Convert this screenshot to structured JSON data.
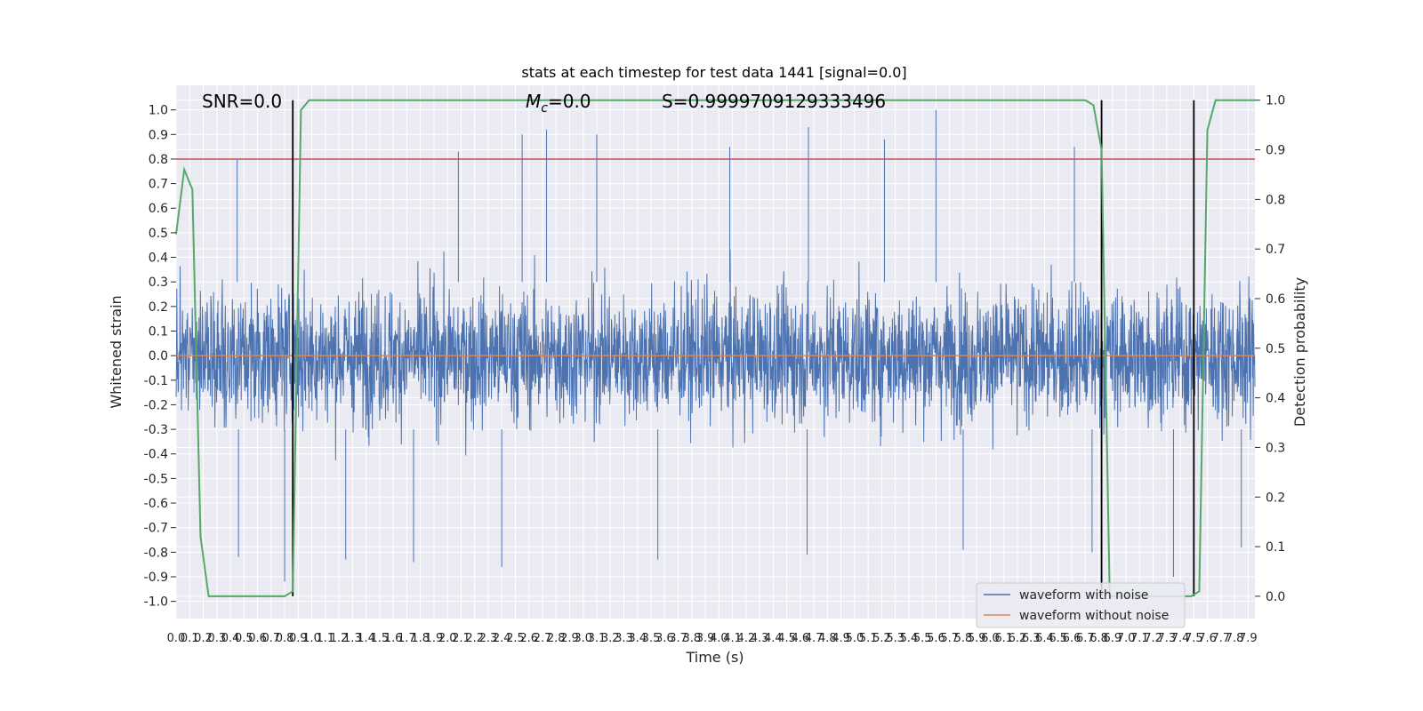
{
  "chart_data": {
    "type": "line",
    "title": "stats at each timestep for test data 1441 [signal=0.0]",
    "xlabel": "Time (s)",
    "ylabel": "Whitened strain",
    "y2label": "Detection probability",
    "xlim": [
      0.0,
      7.95
    ],
    "ylim": [
      -1.07,
      1.1
    ],
    "y2lim": [
      -0.045,
      1.03
    ],
    "x_ticks": [
      "0.0",
      "0.1",
      "0.2",
      "0.3",
      "0.4",
      "0.5",
      "0.6",
      "0.7",
      "0.8",
      "0.9",
      "1.0",
      "1.1",
      "1.2",
      "1.3",
      "1.4",
      "1.5",
      "1.6",
      "1.7",
      "1.8",
      "1.9",
      "2.0",
      "2.1",
      "2.2",
      "2.3",
      "2.4",
      "2.5",
      "2.6",
      "2.7",
      "2.8",
      "2.9",
      "3.0",
      "3.1",
      "3.2",
      "3.3",
      "3.4",
      "3.5",
      "3.6",
      "3.7",
      "3.8",
      "3.9",
      "4.0",
      "4.1",
      "4.2",
      "4.3",
      "4.4",
      "4.5",
      "4.6",
      "4.7",
      "4.8",
      "4.9",
      "5.0",
      "5.1",
      "5.2",
      "5.3",
      "5.4",
      "5.5",
      "5.6",
      "5.7",
      "5.8",
      "5.9",
      "6.0",
      "6.1",
      "6.2",
      "6.3",
      "6.4",
      "6.5",
      "6.6",
      "6.7",
      "6.8",
      "6.9",
      "7.0",
      "7.1",
      "7.2",
      "7.3",
      "7.4",
      "7.5",
      "7.6",
      "7.7",
      "7.8",
      "7.9"
    ],
    "y_ticks": [
      "1.0",
      "0.9",
      "0.8",
      "0.7",
      "0.6",
      "0.5",
      "0.4",
      "0.3",
      "0.2",
      "0.1",
      "0.0",
      "-0.1",
      "-0.2",
      "-0.3",
      "-0.4",
      "-0.5",
      "-0.6",
      "-0.7",
      "-0.8",
      "-0.9",
      "-1.0"
    ],
    "y2_ticks": [
      "1.0",
      "0.9",
      "0.8",
      "0.7",
      "0.6",
      "0.5",
      "0.4",
      "0.3",
      "0.2",
      "0.1",
      "0.0"
    ],
    "annotations": {
      "snr": "SNR=0.0",
      "mc_symbol": "M",
      "mc_sub": "c",
      "mc_value": "=0.0",
      "s": "S=0.9999709129333496"
    },
    "threshold_line": {
      "y": 0.8,
      "color": "#c44e52"
    },
    "vertical_lines_x": [
      0.86,
      6.82,
      7.5
    ],
    "series": [
      {
        "name": "waveform with noise",
        "color": "#4c72b0",
        "note_style": "noise",
        "amplitude_envelope": 0.6,
        "peaks_x": [
          0.45,
          2.08,
          2.55,
          2.73,
          3.1,
          4.08,
          4.66,
          5.22,
          5.6,
          6.62
        ],
        "peaks_y": [
          0.8,
          0.83,
          0.9,
          0.92,
          0.9,
          0.85,
          0.93,
          0.88,
          1.0,
          0.85
        ],
        "troughs_x": [
          0.46,
          0.8,
          1.25,
          1.75,
          2.4,
          3.55,
          4.65,
          5.8,
          6.75,
          7.35,
          7.85
        ],
        "troughs_y": [
          -0.82,
          -0.92,
          -0.83,
          -0.84,
          -0.86,
          -0.83,
          -0.81,
          -0.79,
          -0.8,
          -0.9,
          -0.78
        ]
      },
      {
        "name": "waveform without noise",
        "color": "#dd8452",
        "x": [
          0.0,
          7.95
        ],
        "values": [
          0.0,
          0.0
        ]
      },
      {
        "name": "Detection probability",
        "color": "#55a868",
        "axis": "right",
        "x": [
          0.0,
          0.06,
          0.12,
          0.18,
          0.24,
          0.3,
          0.4,
          0.5,
          0.6,
          0.7,
          0.8,
          0.86,
          0.92,
          0.98,
          1.04,
          1.2,
          2.0,
          3.0,
          4.0,
          5.0,
          6.0,
          6.7,
          6.76,
          6.82,
          6.88,
          6.94,
          7.0,
          7.2,
          7.4,
          7.48,
          7.54,
          7.6,
          7.66,
          7.8,
          7.95
        ],
        "values": [
          0.73,
          0.86,
          0.82,
          0.12,
          0.0,
          0.0,
          0.0,
          0.0,
          0.0,
          0.0,
          0.0,
          0.01,
          0.98,
          1.0,
          1.0,
          1.0,
          1.0,
          1.0,
          1.0,
          1.0,
          1.0,
          1.0,
          0.99,
          0.9,
          0.0,
          0.0,
          0.0,
          0.0,
          0.0,
          0.0,
          0.01,
          0.94,
          1.0,
          1.0,
          1.0
        ]
      }
    ],
    "legend": {
      "placement": "lower-right",
      "entries": [
        "waveform with noise",
        "waveform without noise"
      ]
    },
    "grid": true,
    "style": {
      "face_color": "#eaeaf2",
      "grid_color": "#ffffff"
    }
  }
}
